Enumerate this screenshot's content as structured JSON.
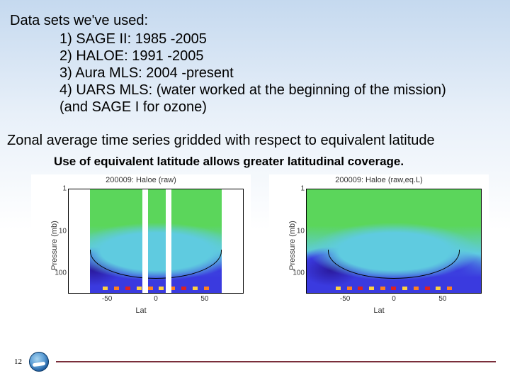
{
  "datasets": {
    "title": "Data sets we've used:",
    "items": [
      "1) SAGE II: 1985 -2005",
      "2) HALOE: 1991 -2005",
      "3) Aura MLS: 2004 -present",
      "4) UARS MLS: (water worked at the beginning of the mission)",
      "(and SAGE I for ozone)"
    ]
  },
  "subtitle": "Zonal average time series gridded with respect to equivalent latitude",
  "caption": "Use of equivalent latitude allows greater latitudinal coverage.",
  "charts": {
    "left": {
      "title": "200009: Haloe (raw)",
      "ylabel": "Pressure (mb)",
      "xlabel": "Lat",
      "xticks": [
        "-50",
        "0",
        "50"
      ],
      "yticks": [
        "1",
        "10",
        "100"
      ],
      "ylim": [
        1,
        300
      ],
      "xlim": [
        -90,
        90
      ],
      "type": "heatmap",
      "colorscale": {
        "top": "#5bd65b",
        "mid": "#5fcbe0",
        "low": "#3a3adf",
        "min": "#2a1a9e",
        "high1": "#ffd040",
        "high2": "#ff8020",
        "high3": "#e02020"
      },
      "data_gaps_lat": [
        [
          -90,
          -68
        ],
        [
          -14,
          -8
        ],
        [
          10,
          16
        ],
        [
          68,
          90
        ]
      ],
      "bottom_blocks": {
        "start_lat": -55,
        "end_lat": 55,
        "colors": [
          "#ffd040",
          "#ff8020",
          "#e02020",
          "#ffd040",
          "#ff8020",
          "#ffd040",
          "#ff8020",
          "#e02020",
          "#ffd040",
          "#ff8020"
        ]
      }
    },
    "right": {
      "title": "200009: Haloe (raw,eq.L)",
      "ylabel": "Pressure (mb)",
      "xlabel": "Lat",
      "xticks": [
        "-50",
        "0",
        "50"
      ],
      "yticks": [
        "1",
        "10",
        "100"
      ],
      "ylim": [
        1,
        300
      ],
      "xlim": [
        -90,
        90
      ],
      "type": "heatmap",
      "colorscale": {
        "top": "#5bd65b",
        "mid": "#5fcbe0",
        "low": "#3a3adf",
        "min": "#2a1a9e",
        "high1": "#ffd040",
        "high2": "#ff8020",
        "high3": "#e02020"
      },
      "data_gaps_lat": [],
      "bottom_blocks": {
        "start_lat": -60,
        "end_lat": 60,
        "colors": [
          "#ffd040",
          "#ff8020",
          "#e02020",
          "#ffd040",
          "#ff8020",
          "#e02020",
          "#ffd040",
          "#ff8020",
          "#e02020",
          "#ffd040",
          "#ff8020"
        ]
      }
    }
  },
  "footer": {
    "page": "12",
    "line_color": "#7a2e3a"
  }
}
